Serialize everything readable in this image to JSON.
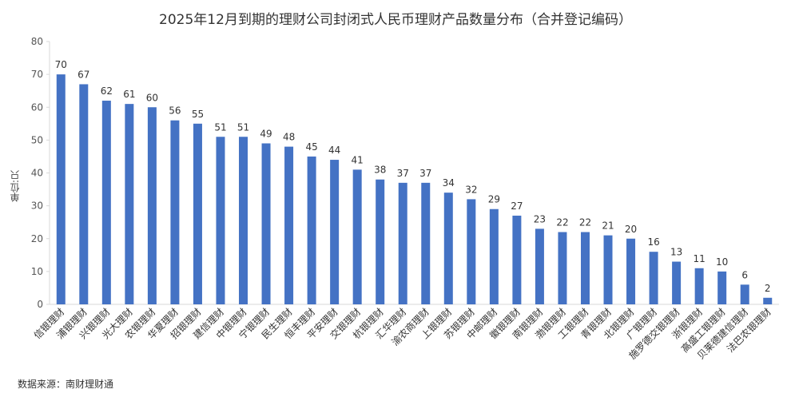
{
  "chart_data": {
    "type": "bar",
    "title": "2025年12月到期的理财公司封闭式人民币理财产品数量分布（合并登记编码）",
    "ylabel": "单位:只",
    "ylim": [
      0,
      80
    ],
    "yticks": [
      0,
      10,
      20,
      30,
      40,
      50,
      60,
      70,
      80
    ],
    "grid": false,
    "bar_color": "#4472C4",
    "categories": [
      "信银理财",
      "浦银理财",
      "兴银理财",
      "光大理财",
      "农银理财",
      "华夏理财",
      "招银理财",
      "建信理财",
      "中银理财",
      "宁银理财",
      "民生理财",
      "恒丰理财",
      "平安理财",
      "交银理财",
      "杭银理财",
      "汇华理财",
      "渝农商理财",
      "上银理财",
      "苏银理财",
      "中邮理财",
      "徽银理财",
      "南银理财",
      "渤银理财",
      "工银理财",
      "青银理财",
      "北银理财",
      "广银理财",
      "施罗德交银理财",
      "浙银理财",
      "高盛工银理财",
      "贝莱德建信理财",
      "法巴农银理财"
    ],
    "values": [
      70,
      67,
      62,
      61,
      60,
      56,
      55,
      51,
      51,
      49,
      48,
      45,
      44,
      41,
      38,
      37,
      37,
      34,
      32,
      29,
      27,
      23,
      22,
      22,
      21,
      20,
      16,
      13,
      11,
      10,
      6,
      2
    ]
  },
  "source": "数据来源：南财理财通"
}
